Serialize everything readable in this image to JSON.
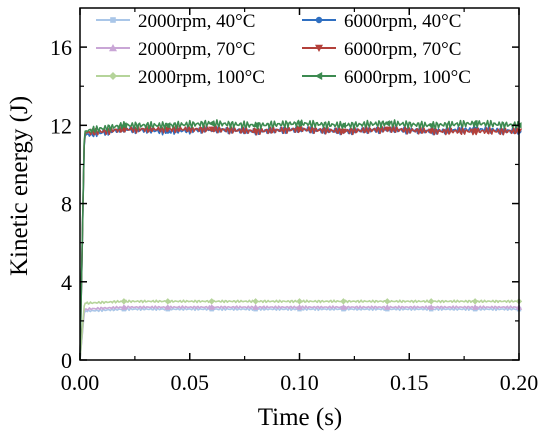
{
  "chart_data": {
    "type": "line",
    "xlabel": "Time (s)",
    "ylabel": "Kinetic energy (J)",
    "xlim": [
      0.0,
      0.2
    ],
    "ylim": [
      0,
      18
    ],
    "xticks": [
      0.0,
      0.05,
      0.1,
      0.15,
      0.2
    ],
    "xtick_labels": [
      "0.00",
      "0.05",
      "0.10",
      "0.15",
      "0.20"
    ],
    "yticks": [
      0,
      4,
      8,
      12,
      16
    ],
    "ytick_labels": [
      "0",
      "4",
      "8",
      "12",
      "16"
    ],
    "grid": false,
    "legend_position": "top, two columns",
    "series": [
      {
        "name": "2000rpm, 40°C",
        "color": "#a9c6e8",
        "marker": "square",
        "x": [
          0.0,
          0.002,
          0.02,
          0.04,
          0.06,
          0.08,
          0.1,
          0.12,
          0.14,
          0.16,
          0.18,
          0.2
        ],
        "y": [
          0.0,
          2.5,
          2.6,
          2.6,
          2.6,
          2.6,
          2.6,
          2.6,
          2.6,
          2.6,
          2.6,
          2.6
        ]
      },
      {
        "name": "6000rpm, 40°C",
        "color": "#2f6fc1",
        "marker": "circle",
        "x": [
          0.0,
          0.002,
          0.02,
          0.04,
          0.06,
          0.08,
          0.1,
          0.12,
          0.14,
          0.16,
          0.18,
          0.2
        ],
        "y": [
          0.0,
          11.5,
          11.8,
          11.7,
          11.8,
          11.7,
          11.8,
          11.7,
          11.8,
          11.7,
          11.8,
          11.7
        ]
      },
      {
        "name": "2000rpm, 70°C",
        "color": "#c9a6d6",
        "marker": "triangle-up",
        "x": [
          0.0,
          0.002,
          0.02,
          0.04,
          0.06,
          0.08,
          0.1,
          0.12,
          0.14,
          0.16,
          0.18,
          0.2
        ],
        "y": [
          0.0,
          2.6,
          2.7,
          2.7,
          2.7,
          2.7,
          2.7,
          2.7,
          2.7,
          2.7,
          2.7,
          2.7
        ]
      },
      {
        "name": "6000rpm, 70°C",
        "color": "#b3403a",
        "marker": "triangle-down",
        "x": [
          0.0,
          0.002,
          0.02,
          0.04,
          0.06,
          0.08,
          0.1,
          0.12,
          0.14,
          0.16,
          0.18,
          0.2
        ],
        "y": [
          0.0,
          11.6,
          11.8,
          11.8,
          11.8,
          11.7,
          11.8,
          11.7,
          11.8,
          11.7,
          11.7,
          11.7
        ]
      },
      {
        "name": "2000rpm, 100°C",
        "color": "#b5d49a",
        "marker": "diamond",
        "x": [
          0.0,
          0.002,
          0.02,
          0.04,
          0.06,
          0.08,
          0.1,
          0.12,
          0.14,
          0.16,
          0.18,
          0.2
        ],
        "y": [
          0.0,
          2.9,
          3.0,
          3.0,
          3.0,
          3.0,
          3.0,
          3.0,
          3.0,
          3.0,
          3.0,
          3.0
        ]
      },
      {
        "name": "6000rpm, 100°C",
        "color": "#3c8a50",
        "marker": "triangle-left",
        "x": [
          0.0,
          0.002,
          0.02,
          0.04,
          0.06,
          0.08,
          0.1,
          0.12,
          0.14,
          0.16,
          0.18,
          0.2
        ],
        "y": [
          0.0,
          11.7,
          12.0,
          12.0,
          12.1,
          12.0,
          12.1,
          12.0,
          12.1,
          12.0,
          12.1,
          12.0
        ]
      }
    ]
  }
}
